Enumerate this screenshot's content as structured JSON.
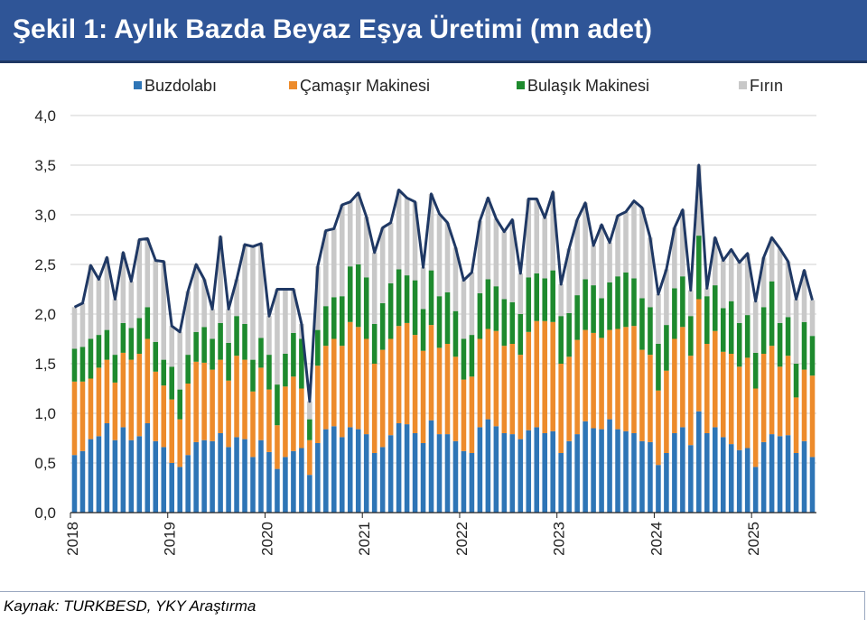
{
  "title": "Şekil 1: Aylık Bazda Beyaz Eşya Üretimi (mn adet)",
  "source": "Kaynak: TURKBESD, YKY Araştırma",
  "colors": {
    "header_bg": "#2f5597",
    "buzdolabi": "#2e75b6",
    "camasir": "#ed8b2b",
    "bulasik": "#1e8a2e",
    "firin": "#c8c8c8",
    "total_line": "#1f3864",
    "grid": "#d0d0d0"
  },
  "chart_data": {
    "type": "bar",
    "stacked": true,
    "frequency": "monthly",
    "start": "2018-01",
    "end": "2025-08",
    "ylim": [
      0,
      4
    ],
    "yticks": [
      "0,0",
      "0,5",
      "1,0",
      "1,5",
      "2,0",
      "2,5",
      "3,0",
      "3,5",
      "4,0"
    ],
    "xticks": [
      "2018",
      "2019",
      "2020",
      "2021",
      "2022",
      "2023",
      "2024",
      "2025"
    ],
    "grid": true,
    "legend_position": "top",
    "total_line_series": "Total",
    "series": [
      {
        "name": "Buzdolabı",
        "color": "#2e75b6",
        "values": [
          0.58,
          0.62,
          0.74,
          0.77,
          0.9,
          0.73,
          0.86,
          0.73,
          0.77,
          0.9,
          0.72,
          0.66,
          0.5,
          0.46,
          0.58,
          0.71,
          0.73,
          0.72,
          0.8,
          0.66,
          0.76,
          0.74,
          0.56,
          0.73,
          0.61,
          0.44,
          0.56,
          0.62,
          0.65,
          0.38,
          0.7,
          0.84,
          0.87,
          0.76,
          0.86,
          0.84,
          0.79,
          0.6,
          0.66,
          0.78,
          0.9,
          0.89,
          0.8,
          0.7,
          0.93,
          0.79,
          0.79,
          0.72,
          0.62,
          0.6,
          0.86,
          0.94,
          0.87,
          0.8,
          0.79,
          0.74,
          0.83,
          0.86,
          0.8,
          0.82,
          0.6,
          0.72,
          0.79,
          0.92,
          0.85,
          0.84,
          0.94,
          0.84,
          0.82,
          0.8,
          0.72,
          0.71,
          0.48,
          0.6,
          0.8,
          0.86,
          0.68,
          1.02,
          0.8,
          0.86,
          0.76,
          0.69,
          0.63,
          0.65,
          0.46,
          0.71,
          0.79,
          0.77,
          0.78,
          0.6,
          0.72,
          0.56
        ]
      },
      {
        "name": "Çamaşır Makinesi",
        "color": "#ed8b2b",
        "values": [
          0.74,
          0.7,
          0.61,
          0.69,
          0.64,
          0.58,
          0.75,
          0.81,
          0.83,
          0.85,
          0.7,
          0.62,
          0.64,
          0.48,
          0.72,
          0.81,
          0.78,
          0.72,
          0.74,
          0.67,
          0.82,
          0.8,
          0.66,
          0.73,
          0.63,
          0.44,
          0.71,
          0.75,
          0.6,
          0.35,
          0.78,
          0.84,
          0.88,
          0.92,
          1.06,
          1.03,
          0.96,
          0.9,
          0.98,
          0.97,
          0.98,
          1.02,
          0.99,
          0.93,
          0.96,
          0.87,
          0.91,
          0.85,
          0.72,
          0.77,
          0.89,
          0.91,
          0.96,
          0.88,
          0.91,
          0.85,
          0.99,
          1.07,
          1.13,
          1.1,
          0.9,
          0.85,
          0.95,
          0.92,
          0.96,
          0.92,
          0.9,
          1.01,
          1.05,
          1.08,
          0.92,
          0.88,
          0.75,
          0.83,
          0.95,
          1.01,
          0.9,
          1.13,
          0.9,
          0.97,
          0.86,
          0.91,
          0.84,
          0.91,
          0.79,
          0.89,
          0.89,
          0.7,
          0.8,
          0.56,
          0.72,
          0.82
        ]
      },
      {
        "name": "Bulaşık Makinesi",
        "color": "#1e8a2e",
        "values": [
          0.33,
          0.35,
          0.4,
          0.33,
          0.3,
          0.28,
          0.3,
          0.32,
          0.36,
          0.32,
          0.3,
          0.26,
          0.33,
          0.3,
          0.29,
          0.3,
          0.36,
          0.31,
          0.37,
          0.38,
          0.4,
          0.36,
          0.32,
          0.3,
          0.35,
          0.41,
          0.33,
          0.44,
          0.5,
          0.21,
          0.36,
          0.4,
          0.42,
          0.5,
          0.56,
          0.63,
          0.62,
          0.4,
          0.47,
          0.56,
          0.57,
          0.48,
          0.55,
          0.42,
          0.55,
          0.52,
          0.52,
          0.46,
          0.41,
          0.42,
          0.46,
          0.5,
          0.45,
          0.47,
          0.42,
          0.41,
          0.55,
          0.48,
          0.43,
          0.52,
          0.48,
          0.44,
          0.45,
          0.51,
          0.48,
          0.4,
          0.48,
          0.53,
          0.55,
          0.48,
          0.52,
          0.48,
          0.47,
          0.46,
          0.51,
          0.51,
          0.4,
          0.64,
          0.48,
          0.46,
          0.44,
          0.53,
          0.44,
          0.43,
          0.36,
          0.47,
          0.65,
          0.44,
          0.39,
          0.34,
          0.48,
          0.4
        ]
      },
      {
        "name": "Fırın",
        "color": "#c8c8c8",
        "values": [
          0.42,
          0.44,
          0.74,
          0.56,
          0.73,
          0.56,
          0.71,
          0.47,
          0.79,
          0.69,
          0.82,
          0.99,
          0.41,
          0.58,
          0.64,
          0.68,
          0.48,
          0.3,
          0.87,
          0.34,
          0.37,
          0.8,
          1.14,
          0.95,
          0.39,
          0.96,
          0.65,
          0.44,
          0.15,
          0.18,
          0.64,
          0.76,
          0.69,
          0.92,
          0.65,
          0.72,
          0.61,
          0.72,
          0.76,
          0.61,
          0.8,
          0.78,
          0.79,
          0.42,
          0.77,
          0.83,
          0.7,
          0.64,
          0.59,
          0.63,
          0.73,
          0.82,
          0.68,
          0.68,
          0.83,
          0.41,
          0.79,
          0.75,
          0.61,
          0.79,
          0.32,
          0.65,
          0.76,
          0.77,
          0.4,
          0.74,
          0.4,
          0.61,
          0.61,
          0.78,
          0.91,
          0.7,
          0.5,
          0.56,
          0.61,
          0.67,
          0.26,
          0.71,
          0.08,
          0.48,
          0.48,
          0.52,
          0.61,
          0.62,
          0.52,
          0.5,
          0.44,
          0.75,
          0.56,
          0.65,
          0.52,
          0.36
        ]
      }
    ]
  }
}
